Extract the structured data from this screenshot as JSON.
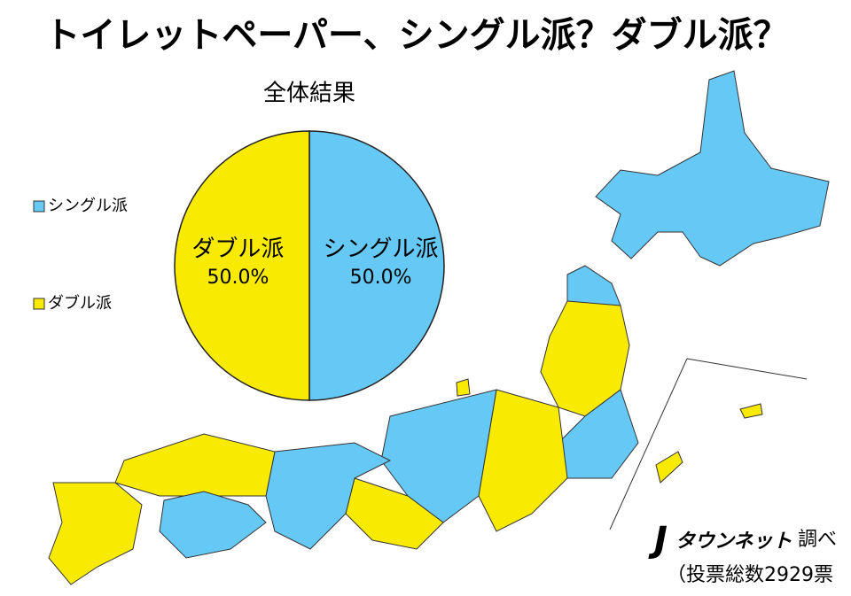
{
  "chart_data": {
    "type": "pie",
    "title": "トイレットペーパー、シングル派？ダブル派？",
    "subtitle": "全体結果",
    "categories": [
      "シングル派",
      "ダブル派"
    ],
    "values": [
      50.0,
      50.0
    ],
    "value_labels": [
      "50.0%",
      "50.0%"
    ],
    "colors": [
      "#66c8f5",
      "#f8ea00"
    ],
    "legend": "left",
    "source_logo": "タウンネット",
    "source_suffix": "調べ",
    "vote_note": "（投票総数2929票"
  }
}
